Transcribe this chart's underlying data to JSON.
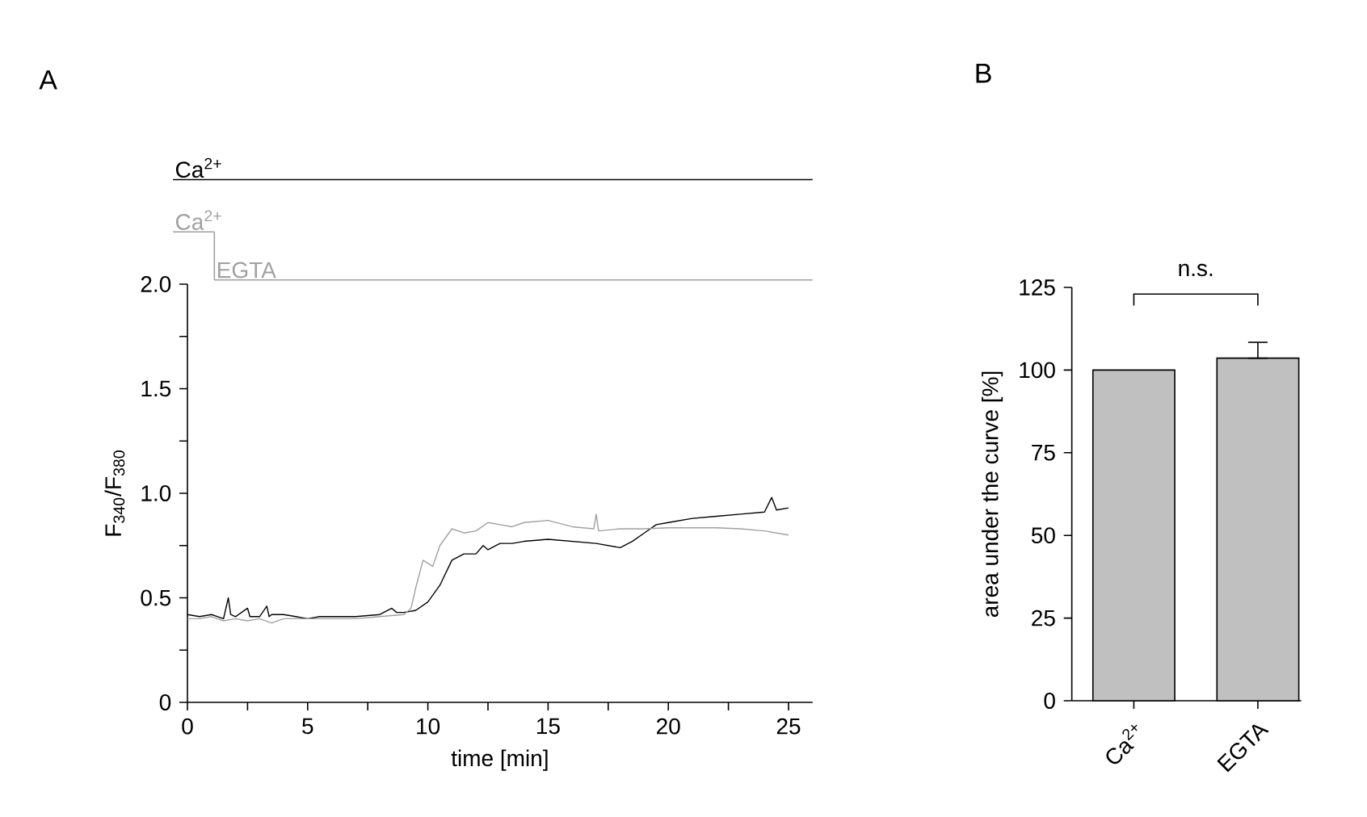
{
  "chart_data": [
    {
      "type": "line",
      "title": "A",
      "xlabel": "time [min]",
      "ylabel": "F$_{340}$/F$_{380}$",
      "annotations": [
        "Ca$^{2+}$",
        "Ca$^{2+}$",
        "EGTA"
      ],
      "xlim": [
        0,
        26
      ],
      "ylim": [
        0,
        2
      ],
      "xticks": [
        0,
        {
          "value": 2.5,
          "label": null
        },
        5,
        {
          "value": 7.5,
          "label": null
        },
        10,
        {
          "value": 12.5,
          "label": null
        },
        15,
        {
          "value": 17.5,
          "label": null
        },
        20,
        {
          "value": 22.5,
          "label": null
        },
        25
      ],
      "yticks": [
        0,
        {
          "value": 0.25,
          "label": null
        },
        0.5,
        {
          "value": 0.75,
          "label": null
        },
        {
          "value": 1,
          "label": "1.0"
        },
        {
          "value": 1.25,
          "label": null
        },
        1.5,
        {
          "value": 1.75,
          "label": null
        },
        {
          "value": 2,
          "label": "2.0"
        }
      ],
      "series": [
        {
          "color": "#000000",
          "x": [
            0,
            0.5,
            1,
            1.5,
            1.7,
            1.8,
            2,
            2.5,
            2.6,
            3,
            3.3,
            3.4,
            3.5,
            4,
            4.5,
            5,
            5.5,
            6,
            7,
            8,
            8.5,
            8.7,
            9,
            9.5,
            10,
            10.5,
            11,
            11.5,
            12,
            12.3,
            12.5,
            13,
            13.5,
            14,
            15,
            16,
            17,
            18,
            18.5,
            19,
            19.5,
            20,
            21,
            22,
            23,
            24,
            24.3,
            24.5,
            25
          ],
          "values": [
            0.42,
            0.41,
            0.42,
            0.4,
            0.5,
            0.42,
            0.41,
            0.45,
            0.41,
            0.41,
            0.46,
            0.41,
            0.42,
            0.42,
            0.41,
            0.4,
            0.41,
            0.41,
            0.41,
            0.42,
            0.45,
            0.43,
            0.43,
            0.44,
            0.48,
            0.56,
            0.68,
            0.71,
            0.71,
            0.75,
            0.73,
            0.76,
            0.76,
            0.77,
            0.78,
            0.77,
            0.76,
            0.74,
            0.77,
            0.81,
            0.85,
            0.86,
            0.88,
            0.89,
            0.9,
            0.91,
            0.98,
            0.92,
            0.93
          ]
        },
        {
          "color": "#a0a0a0",
          "x": [
            0,
            0.5,
            1,
            1.5,
            2,
            2.5,
            3,
            3.5,
            4,
            4.5,
            5,
            6,
            7,
            8,
            9,
            9.3,
            9.5,
            9.8,
            10.2,
            10.5,
            11,
            11.5,
            12,
            12.5,
            13,
            13.5,
            14,
            15,
            16,
            16.9,
            17,
            17.1,
            18,
            19,
            20,
            21,
            22,
            23,
            24,
            25
          ],
          "values": [
            0.4,
            0.4,
            0.41,
            0.39,
            0.4,
            0.39,
            0.4,
            0.38,
            0.4,
            0.4,
            0.4,
            0.4,
            0.4,
            0.41,
            0.42,
            0.45,
            0.55,
            0.68,
            0.65,
            0.75,
            0.83,
            0.81,
            0.82,
            0.86,
            0.85,
            0.84,
            0.86,
            0.87,
            0.84,
            0.83,
            0.9,
            0.82,
            0.83,
            0.83,
            0.835,
            0.835,
            0.835,
            0.83,
            0.82,
            0.8
          ]
        }
      ]
    },
    {
      "type": "bar",
      "title": "B",
      "ylabel": "area under the curve [%]",
      "annotations": [
        "n.s."
      ],
      "categories": [
        "Ca$^{2+}$",
        "EGTA"
      ],
      "values": [
        100,
        103.6
      ],
      "errors": [
        null,
        [
          103.6,
          108.4
        ]
      ],
      "color": "#c0c0c0",
      "ylim": [
        0,
        125
      ],
      "yticks": [
        0,
        25,
        50,
        75,
        100,
        125
      ]
    }
  ]
}
